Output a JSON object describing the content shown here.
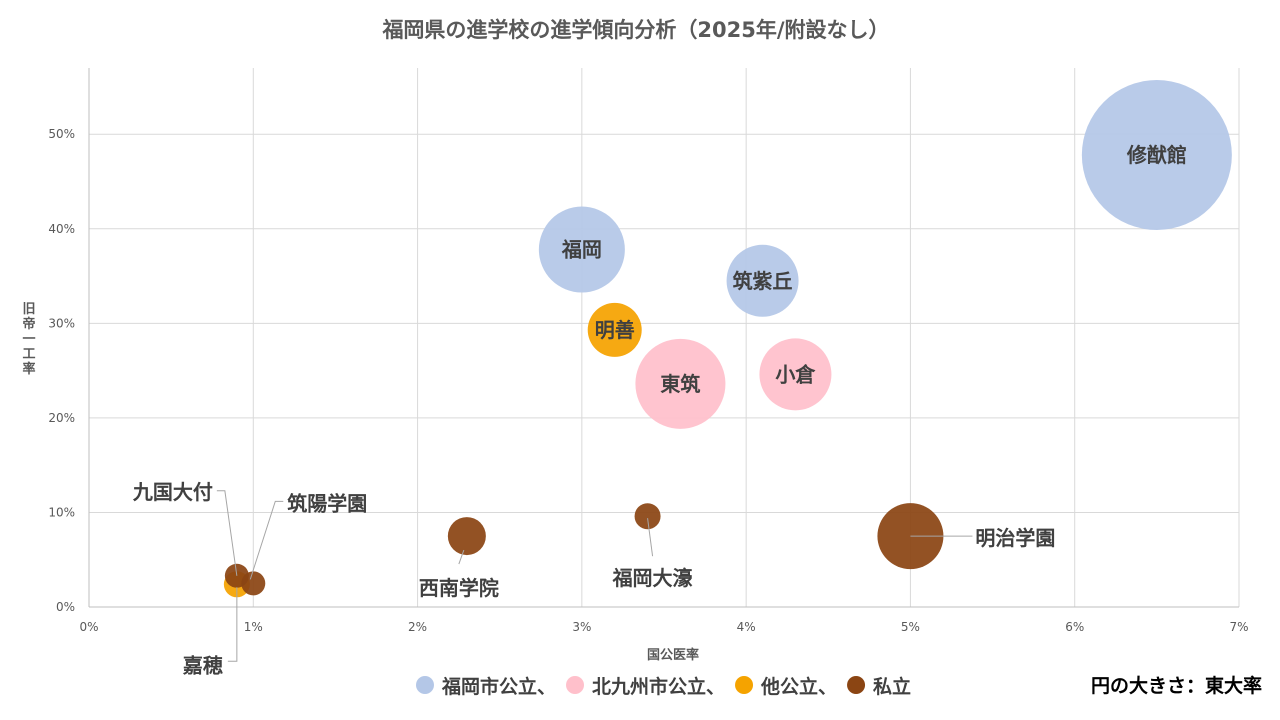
{
  "chart_data": {
    "type": "scatter",
    "subtype": "bubble",
    "title": "福岡県の進学校の進学傾向分析（2025年/附設なし）",
    "xlabel": "国公医率",
    "ylabel": "旧帝一工率",
    "xlim": [
      0,
      7
    ],
    "ylim": [
      0,
      57
    ],
    "x_ticks": [
      0,
      1,
      2,
      3,
      4,
      5,
      6,
      7
    ],
    "x_tick_labels": [
      "0%",
      "1%",
      "2%",
      "3%",
      "4%",
      "5%",
      "6%",
      "7%"
    ],
    "y_ticks": [
      0,
      10,
      20,
      30,
      40,
      50
    ],
    "y_tick_labels": [
      "0%",
      "10%",
      "20%",
      "30%",
      "40%",
      "50%"
    ],
    "grid": true,
    "size_note": "円の大きさ：東大率",
    "series": [
      {
        "name": "福岡市公立",
        "color": "#b4c7e7",
        "points": [
          {
            "label": "修猷館",
            "x": 6.5,
            "y": 47.8,
            "size": 75
          },
          {
            "label": "福岡",
            "x": 3.0,
            "y": 37.8,
            "size": 43
          },
          {
            "label": "筑紫丘",
            "x": 4.1,
            "y": 34.5,
            "size": 36
          }
        ]
      },
      {
        "name": "北九州市公立",
        "color": "#ffc0cb",
        "points": [
          {
            "label": "東筑",
            "x": 3.6,
            "y": 23.6,
            "size": 45
          },
          {
            "label": "小倉",
            "x": 4.3,
            "y": 24.6,
            "size": 36
          }
        ]
      },
      {
        "name": "他公立",
        "color": "#f5a300",
        "points": [
          {
            "label": "明善",
            "x": 3.2,
            "y": 29.3,
            "size": 27
          },
          {
            "label": "嘉穂",
            "x": 0.9,
            "y": 2.4,
            "size": 13
          }
        ]
      },
      {
        "name": "私立",
        "color": "#8b4513",
        "points": [
          {
            "label": "明治学園",
            "x": 5.0,
            "y": 7.5,
            "size": 33
          },
          {
            "label": "西南学院",
            "x": 2.3,
            "y": 7.5,
            "size": 19
          },
          {
            "label": "福岡大濠",
            "x": 3.4,
            "y": 9.6,
            "size": 13
          },
          {
            "label": "九国大付",
            "x": 0.9,
            "y": 3.3,
            "size": 12
          },
          {
            "label": "筑陽学園",
            "x": 1.0,
            "y": 2.5,
            "size": 12
          }
        ]
      }
    ],
    "legend_separator": "、"
  }
}
